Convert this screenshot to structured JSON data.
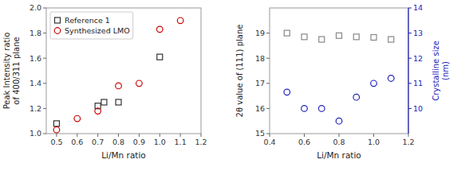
{
  "chart_data": [
    {
      "type": "scatter",
      "x_label": "Li/Mn ratio",
      "y_label": "Peak Intensity ratio\nof 400/311 plane",
      "xlim": [
        0.45,
        1.2
      ],
      "ylim": [
        1.0,
        2.0
      ],
      "xticks": [
        0.5,
        0.6,
        0.7,
        0.8,
        0.9,
        {
          "value": 1.0,
          "label": "1.0"
        },
        1.1,
        1.2
      ],
      "yticks": [
        {
          "value": 1.0,
          "label": "1.0"
        },
        1.2,
        1.4,
        1.6,
        1.8,
        {
          "value": 2.0,
          "label": "2.0"
        }
      ],
      "grid": false,
      "legend": "upper left",
      "series": [
        {
          "name": "Reference 1",
          "color": "#333333",
          "marker": "square",
          "x": [
            0.5,
            0.7,
            0.73,
            0.8,
            1.0
          ],
          "values": [
            1.08,
            1.22,
            1.25,
            1.25,
            1.61
          ]
        },
        {
          "name": "Synthesized LMO",
          "color": "#cc0000",
          "marker": "circle",
          "x": [
            0.5,
            0.6,
            0.7,
            0.8,
            0.9,
            1.0,
            1.1
          ],
          "values": [
            1.03,
            1.12,
            1.18,
            1.38,
            1.4,
            1.83,
            1.9
          ]
        }
      ]
    },
    {
      "type": "scatter",
      "x_label": "Li/Mn ratio",
      "y_label": "2θ value of (111) plane",
      "y2_label": "Crystalline size\n(nm)",
      "xlim": [
        0.4,
        1.2
      ],
      "ylim": [
        15,
        20
      ],
      "y2lim": [
        9,
        14
      ],
      "xticks": [
        0.4,
        0.6,
        0.8,
        {
          "value": 1.0,
          "label": "1.0"
        },
        1.2
      ],
      "yticks": [
        15,
        16,
        17,
        18,
        19
      ],
      "y2ticks": [
        10,
        11,
        12,
        13,
        14
      ],
      "grid": false,
      "series": [
        {
          "color": "#888888",
          "marker": "square",
          "x": [
            0.5,
            0.6,
            0.7,
            0.8,
            0.9,
            1.0,
            1.1
          ],
          "values": [
            19.0,
            18.85,
            18.75,
            18.9,
            18.85,
            18.83,
            18.75
          ]
        },
        {
          "color": "#2222bb",
          "marker": "circle",
          "axis": "y2",
          "x": [
            0.5,
            0.6,
            0.7,
            0.8,
            0.9,
            1.0,
            1.1
          ],
          "values": [
            10.65,
            10.0,
            10.0,
            9.5,
            10.45,
            11.0,
            11.2
          ]
        }
      ]
    }
  ]
}
